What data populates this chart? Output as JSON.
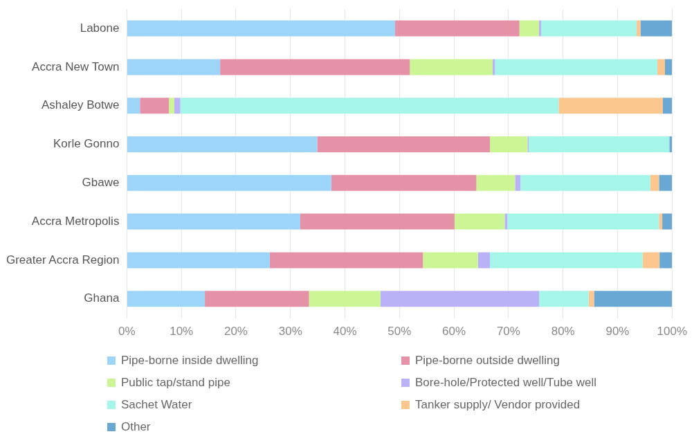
{
  "chart_data": {
    "type": "bar",
    "orientation": "horizontal",
    "stacked": true,
    "categories": [
      "Labone",
      "Accra New Town",
      "Ashaley Botwe",
      "Korle Gonno",
      "Gbawe",
      "Accra Metropolis",
      "Greater Accra Region",
      "Ghana"
    ],
    "series": [
      {
        "name": "Pipe-borne inside dwelling",
        "color": "#9dd5f9",
        "values": [
          49.2,
          17.1,
          2.4,
          34.9,
          37.5,
          31.8,
          26.2,
          14.3
        ]
      },
      {
        "name": "Pipe-borne outside dwelling",
        "color": "#e592a9",
        "values": [
          22.8,
          34.8,
          5.3,
          31.7,
          26.6,
          28.3,
          28.1,
          19.1
        ]
      },
      {
        "name": "Public tap/stand pipe",
        "color": "#ccf596",
        "values": [
          3.6,
          15.2,
          1.0,
          6.9,
          7.1,
          9.2,
          10.1,
          13.1
        ]
      },
      {
        "name": "Bore-hole/Protected well/Tube well",
        "color": "#bab2f7",
        "values": [
          0.4,
          0.4,
          1.1,
          0.2,
          1.0,
          0.5,
          2.2,
          29.1
        ]
      },
      {
        "name": "Sachet Water",
        "color": "#a5f5e9",
        "values": [
          17.5,
          29.8,
          69.4,
          25.8,
          23.8,
          27.8,
          28.0,
          9.1
        ]
      },
      {
        "name": "Tanker supply/ Vendor provided",
        "color": "#fcc68f",
        "values": [
          0.7,
          1.4,
          19.1,
          0,
          1.6,
          0.6,
          3.1,
          1.0
        ]
      },
      {
        "name": "Other",
        "color": "#6aa8d4",
        "values": [
          5.8,
          1.3,
          1.7,
          0.5,
          2.4,
          1.8,
          2.3,
          14.3
        ]
      }
    ],
    "xlim": [
      0,
      100
    ],
    "xticks": [
      {
        "value": 0,
        "label": "0%"
      },
      {
        "value": 10,
        "label": "10%"
      },
      {
        "value": 20,
        "label": "20%"
      },
      {
        "value": 30,
        "label": "30%"
      },
      {
        "value": 40,
        "label": "40%"
      },
      {
        "value": 50,
        "label": "50%"
      },
      {
        "value": 60,
        "label": "60%"
      },
      {
        "value": 70,
        "label": "70%"
      },
      {
        "value": 80,
        "label": "80%"
      },
      {
        "value": 90,
        "label": "90%"
      },
      {
        "value": 100,
        "label": "100%"
      }
    ],
    "grid": "x",
    "legend": "bottom"
  }
}
